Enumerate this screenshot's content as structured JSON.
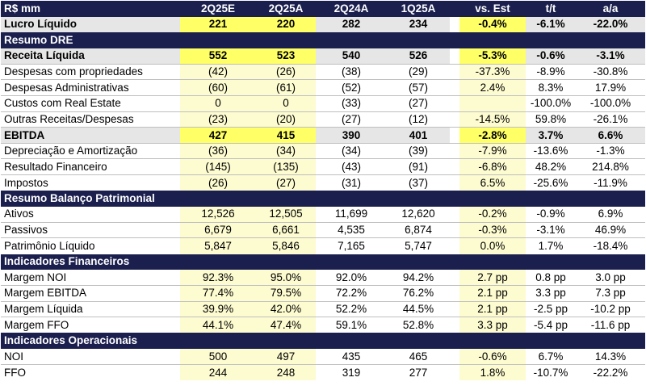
{
  "header": {
    "label": "R$ mm",
    "cols": [
      "2Q25E",
      "2Q25A",
      "2Q24A",
      "1Q25A",
      "vs. Est",
      "t/t",
      "a/a"
    ]
  },
  "rows": [
    {
      "type": "row",
      "style": "gray-bold",
      "label": "Lucro Líquido",
      "values": [
        "221",
        "220",
        "282",
        "234",
        "-0.4%",
        "-6.1%",
        "-22.0%"
      ]
    },
    {
      "type": "section",
      "label": "Resumo DRE"
    },
    {
      "type": "row",
      "style": "gray-bold",
      "label": "Receita Líquida",
      "values": [
        "552",
        "523",
        "540",
        "526",
        "-5.3%",
        "-0.6%",
        "-3.1%"
      ]
    },
    {
      "type": "row",
      "label": "Despesas com propriedades",
      "values": [
        "(42)",
        "(26)",
        "(38)",
        "(29)",
        "-37.3%",
        "-8.9%",
        "-30.8%"
      ]
    },
    {
      "type": "row",
      "label": "Despesas Administrativas",
      "values": [
        "(60)",
        "(61)",
        "(52)",
        "(57)",
        "2.4%",
        "8.3%",
        "17.9%"
      ]
    },
    {
      "type": "row",
      "label": "Custos com Real Estate",
      "values": [
        "0",
        "0",
        "(33)",
        "(27)",
        "",
        "-100.0%",
        "-100.0%"
      ]
    },
    {
      "type": "row",
      "label": "Outras Receitas/Despesas",
      "values": [
        "(23)",
        "(20)",
        "(27)",
        "(12)",
        "-14.5%",
        "59.8%",
        "-26.1%"
      ]
    },
    {
      "type": "row",
      "style": "gray-bold",
      "label": "EBITDA",
      "values": [
        "427",
        "415",
        "390",
        "401",
        "-2.8%",
        "3.7%",
        "6.6%"
      ]
    },
    {
      "type": "row",
      "label": "Depreciação e Amortização",
      "values": [
        "(36)",
        "(34)",
        "(34)",
        "(39)",
        "-7.9%",
        "-13.6%",
        "-1.3%"
      ]
    },
    {
      "type": "row",
      "label": "Resultado Financeiro",
      "values": [
        "(145)",
        "(135)",
        "(43)",
        "(91)",
        "-6.8%",
        "48.2%",
        "214.8%"
      ]
    },
    {
      "type": "row",
      "label": "Impostos",
      "values": [
        "(26)",
        "(27)",
        "(31)",
        "(37)",
        "6.5%",
        "-25.6%",
        "-11.9%"
      ]
    },
    {
      "type": "section",
      "label": "Resumo Balanço Patrimonial"
    },
    {
      "type": "row",
      "label": "Ativos",
      "values": [
        "12,526",
        "12,505",
        "11,699",
        "12,620",
        "-0.2%",
        "-0.9%",
        "6.9%"
      ]
    },
    {
      "type": "row",
      "label": "Passivos",
      "values": [
        "6,679",
        "6,661",
        "4,535",
        "6,874",
        "-0.3%",
        "-3.1%",
        "46.9%"
      ]
    },
    {
      "type": "row",
      "label": "Patrimônio Líquido",
      "values": [
        "5,847",
        "5,846",
        "7,165",
        "5,747",
        "0.0%",
        "1.7%",
        "-18.4%"
      ]
    },
    {
      "type": "section",
      "label": "Indicadores Financeiros"
    },
    {
      "type": "row",
      "label": "Margem NOI",
      "values": [
        "92.3%",
        "95.0%",
        "92.0%",
        "94.2%",
        "2.7 pp",
        "0.8 pp",
        "3.0 pp"
      ]
    },
    {
      "type": "row",
      "label": "Margem EBITDA",
      "values": [
        "77.4%",
        "79.5%",
        "72.2%",
        "76.2%",
        "2.1 pp",
        "3.3 pp",
        "7.3 pp"
      ]
    },
    {
      "type": "row",
      "label": "Margem Líquida",
      "values": [
        "39.9%",
        "42.0%",
        "52.2%",
        "44.5%",
        "2.1 pp",
        "-2.5 pp",
        "-10.2 pp"
      ]
    },
    {
      "type": "row",
      "label": "Margem FFO",
      "values": [
        "44.1%",
        "47.4%",
        "59.1%",
        "52.8%",
        "3.3 pp",
        "-5.4 pp",
        "-11.6 pp"
      ]
    },
    {
      "type": "section",
      "label": "Indicadores Operacionais"
    },
    {
      "type": "row",
      "label": "NOI",
      "values": [
        "500",
        "497",
        "435",
        "465",
        "-0.6%",
        "6.7%",
        "14.3%"
      ]
    },
    {
      "type": "row",
      "label": "FFO",
      "values": [
        "244",
        "248",
        "319",
        "277",
        "1.8%",
        "-10.7%",
        "-22.2%"
      ]
    }
  ]
}
